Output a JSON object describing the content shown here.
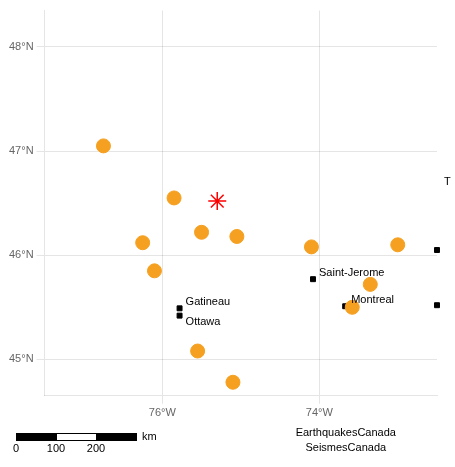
{
  "chart_data": {
    "type": "scatter",
    "xlim": [
      -77.5,
      -72.5
    ],
    "ylim": [
      44.65,
      48.35
    ],
    "xticks": [
      {
        "value": -76,
        "label": "76°W"
      },
      {
        "value": -74,
        "label": "74°W"
      }
    ],
    "yticks": [
      {
        "value": 45,
        "label": "45°N"
      },
      {
        "value": 46,
        "label": "46°N"
      },
      {
        "value": 47,
        "label": "47°N"
      },
      {
        "value": 48,
        "label": "48°N"
      }
    ],
    "grid": true,
    "series": [
      {
        "color": "#f5a020",
        "marker": "circle",
        "x": [
          -76.75,
          -75.85,
          -76.25,
          -75.5,
          -75.05,
          -76.1,
          -75.55,
          -75.1,
          -74.1,
          -73.58,
          -73.0,
          -73.35
        ],
        "values": [
          47.05,
          46.55,
          46.12,
          46.22,
          46.18,
          45.85,
          45.08,
          44.78,
          46.08,
          45.5,
          46.1,
          45.72
        ]
      },
      {
        "color": "red",
        "marker": "star",
        "x": [
          -75.3
        ],
        "values": [
          46.52
        ]
      },
      {
        "color": "black",
        "marker": "square",
        "x": [
          -75.78,
          -75.78,
          -74.08,
          -73.67
        ],
        "values": [
          45.49,
          45.42,
          45.77,
          45.51
        ],
        "point_labels": [
          "Gatineau",
          "Ottawa",
          "Saint-Jerome",
          "Montreal"
        ]
      },
      {
        "color": "black",
        "marker": "square",
        "x": [
          -72.5,
          -72.5
        ],
        "values": [
          46.05,
          45.52
        ]
      }
    ],
    "annotations": [
      "T"
    ],
    "scale_bar": {
      "ticks": [
        0,
        100,
        200
      ],
      "unit": "km"
    },
    "credits": [
      "EarthquakesCanada",
      "SeismesCanada"
    ]
  }
}
